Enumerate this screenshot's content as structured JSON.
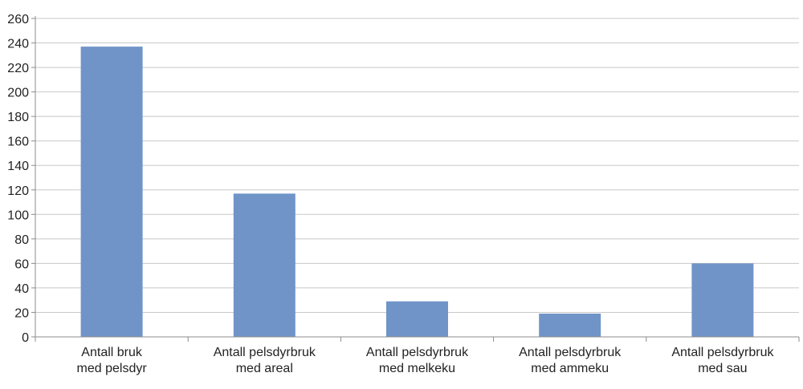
{
  "chart_data": {
    "type": "bar",
    "categories": [
      [
        "Antall bruk",
        "med pelsdyr"
      ],
      [
        "Antall pelsdyrbruk",
        "med areal"
      ],
      [
        "Antall pelsdyrbruk",
        "med melkeku"
      ],
      [
        "Antall pelsdyrbruk",
        "med ammeku"
      ],
      [
        "Antall pelsdyrbruk",
        "med sau"
      ]
    ],
    "values": [
      237,
      117,
      29,
      19,
      60
    ],
    "ylim": [
      0,
      260
    ],
    "yticks": [
      0,
      20,
      40,
      60,
      80,
      100,
      120,
      140,
      160,
      180,
      200,
      220,
      240,
      260
    ],
    "grid": true,
    "legend": "none",
    "colors": {
      "bar": "#7094c8",
      "gridline": "#c8c8c8",
      "axis": "#8c8c8c"
    }
  }
}
